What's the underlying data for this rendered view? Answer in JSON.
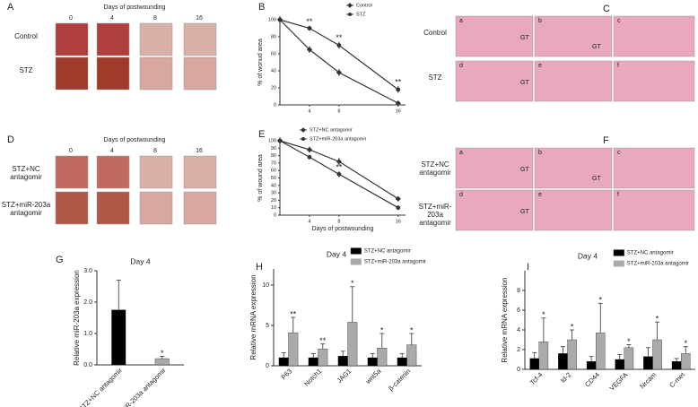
{
  "photo_panels": {
    "A": {
      "letter": "A",
      "header": "Days of  postwounding",
      "columns": [
        "0",
        "4",
        "8",
        "16"
      ],
      "rows": [
        "Control",
        "STZ"
      ]
    },
    "C": {
      "letter": "C",
      "rows": [
        "Control",
        "STZ"
      ],
      "sublabels": [
        "a",
        "b",
        "c",
        "d",
        "e",
        "f"
      ],
      "tags": [
        "GT",
        "GT",
        "GT"
      ]
    },
    "D": {
      "letter": "D",
      "header": "Days of  postwounding",
      "columns": [
        "0",
        "4",
        "8",
        "16"
      ],
      "rows": [
        "STZ+NC antagomir",
        "STZ+miR-203a antagomir"
      ]
    },
    "F": {
      "letter": "F",
      "rows": [
        "STZ+NC antagomir",
        "STZ+miR-203a antagomir"
      ],
      "sublabels": [
        "a",
        "b",
        "c",
        "d",
        "e",
        "f"
      ],
      "tags": [
        "GT",
        "GT",
        "GT"
      ]
    }
  },
  "chart_data": [
    {
      "type": "line",
      "panel": "B",
      "ylabel": "% of wonud area",
      "xlim": [
        0,
        17
      ],
      "xticks": [
        4,
        8,
        16
      ],
      "ylim": [
        0,
        100
      ],
      "yticks": [
        0,
        20,
        40,
        60,
        80,
        100
      ],
      "x": [
        0,
        4,
        8,
        16
      ],
      "series": [
        {
          "name": "Control",
          "color": "#333333",
          "values": [
            100,
            65,
            38,
            2
          ],
          "errors": [
            0,
            4,
            4,
            2
          ]
        },
        {
          "name": "STZ",
          "color": "#333333",
          "values": [
            100,
            90,
            70,
            18
          ],
          "errors": [
            0,
            3,
            4,
            4
          ],
          "annotations": [
            null,
            "**",
            "**",
            "**"
          ]
        }
      ]
    },
    {
      "type": "line",
      "panel": "E",
      "ylabel": "% of wound area",
      "xlabel": "Days of  postwounding",
      "xlim": [
        0,
        17
      ],
      "xticks": [
        4,
        8,
        16
      ],
      "ylim": [
        0,
        100
      ],
      "yticks": [
        0,
        10,
        20,
        30,
        40,
        50,
        60,
        70,
        80,
        90,
        100
      ],
      "x": [
        0,
        4,
        8,
        16
      ],
      "series": [
        {
          "name": "STZ+NC antagomir",
          "color": "#333333",
          "values": [
            100,
            88,
            72,
            22
          ],
          "errors": [
            0,
            4,
            5,
            3
          ]
        },
        {
          "name": "STZ+miR-203a antagomir",
          "color": "#333333",
          "values": [
            100,
            78,
            55,
            10
          ],
          "errors": [
            0,
            3,
            4,
            3
          ],
          "annotations": [
            null,
            null,
            "**",
            null
          ]
        }
      ]
    },
    {
      "type": "bar",
      "panel": "G",
      "title": "Day 4",
      "ylabel": "Relative miR-203a expression",
      "ylim": [
        0,
        3
      ],
      "yticks": [
        {
          "value": 0,
          "label": "0.0"
        },
        {
          "value": 1,
          "label": "1.0"
        },
        {
          "value": 2,
          "label": "2.0"
        },
        {
          "value": 3,
          "label": "3.0"
        }
      ],
      "categories": [
        "STZ+NC antagomir",
        "STZ+miR-203a antagomir"
      ],
      "series": [
        {
          "colors": [
            "#000000",
            "#aaaaaa"
          ],
          "values": [
            1.75,
            0.2
          ],
          "errors": [
            0.95,
            0.07
          ],
          "annotations": [
            null,
            "*"
          ]
        }
      ]
    },
    {
      "type": "bar",
      "panel": "H",
      "title": "Day 4",
      "ylabel": "Relative mRNA expression",
      "ylim": [
        0,
        12
      ],
      "yticks": [
        0,
        5,
        10
      ],
      "categories": [
        "P63",
        "Notch1",
        "JAG1",
        "wnt5a",
        "β-catenin"
      ],
      "series": [
        {
          "name": "STZ+NC antagomir",
          "color": "#000000",
          "values": [
            1.0,
            1.0,
            1.2,
            1.0,
            1.0
          ],
          "errors": [
            0.6,
            0.5,
            0.6,
            0.5,
            0.5
          ]
        },
        {
          "name": "STZ+miR-203a antagomir",
          "color": "#aaaaaa",
          "values": [
            4.1,
            2.1,
            5.4,
            2.2,
            2.6
          ],
          "errors": [
            1.9,
            0.6,
            4.4,
            1.8,
            1.4
          ],
          "annotations": [
            "**",
            "**",
            "*",
            "*",
            "*"
          ]
        }
      ]
    },
    {
      "type": "bar",
      "panel": "I",
      "title": "Day 4",
      "ylabel": "Relative mRNA expression",
      "ylim": [
        0,
        10
      ],
      "yticks": [
        0,
        2,
        4,
        6,
        8
      ],
      "categories": [
        "Tcf-4",
        "Id-2",
        "CD44",
        "VEGFA",
        "Nrcam",
        "C-met"
      ],
      "series": [
        {
          "name": "STZ+NC antagomir",
          "color": "#000000",
          "values": [
            1.1,
            1.6,
            0.8,
            1.0,
            1.3,
            0.8
          ],
          "errors": [
            0.6,
            0.7,
            0.5,
            0.5,
            0.9,
            0.3
          ]
        },
        {
          "name": "STZ+miR-203a antagomir",
          "color": "#aaaaaa",
          "values": [
            2.8,
            3.0,
            3.7,
            2.2,
            3.0,
            1.6
          ],
          "errors": [
            2.4,
            1.0,
            3.0,
            0.3,
            1.8,
            0.7
          ],
          "annotations": [
            "*",
            "*",
            "*",
            "*",
            "*",
            "*"
          ]
        }
      ]
    }
  ]
}
